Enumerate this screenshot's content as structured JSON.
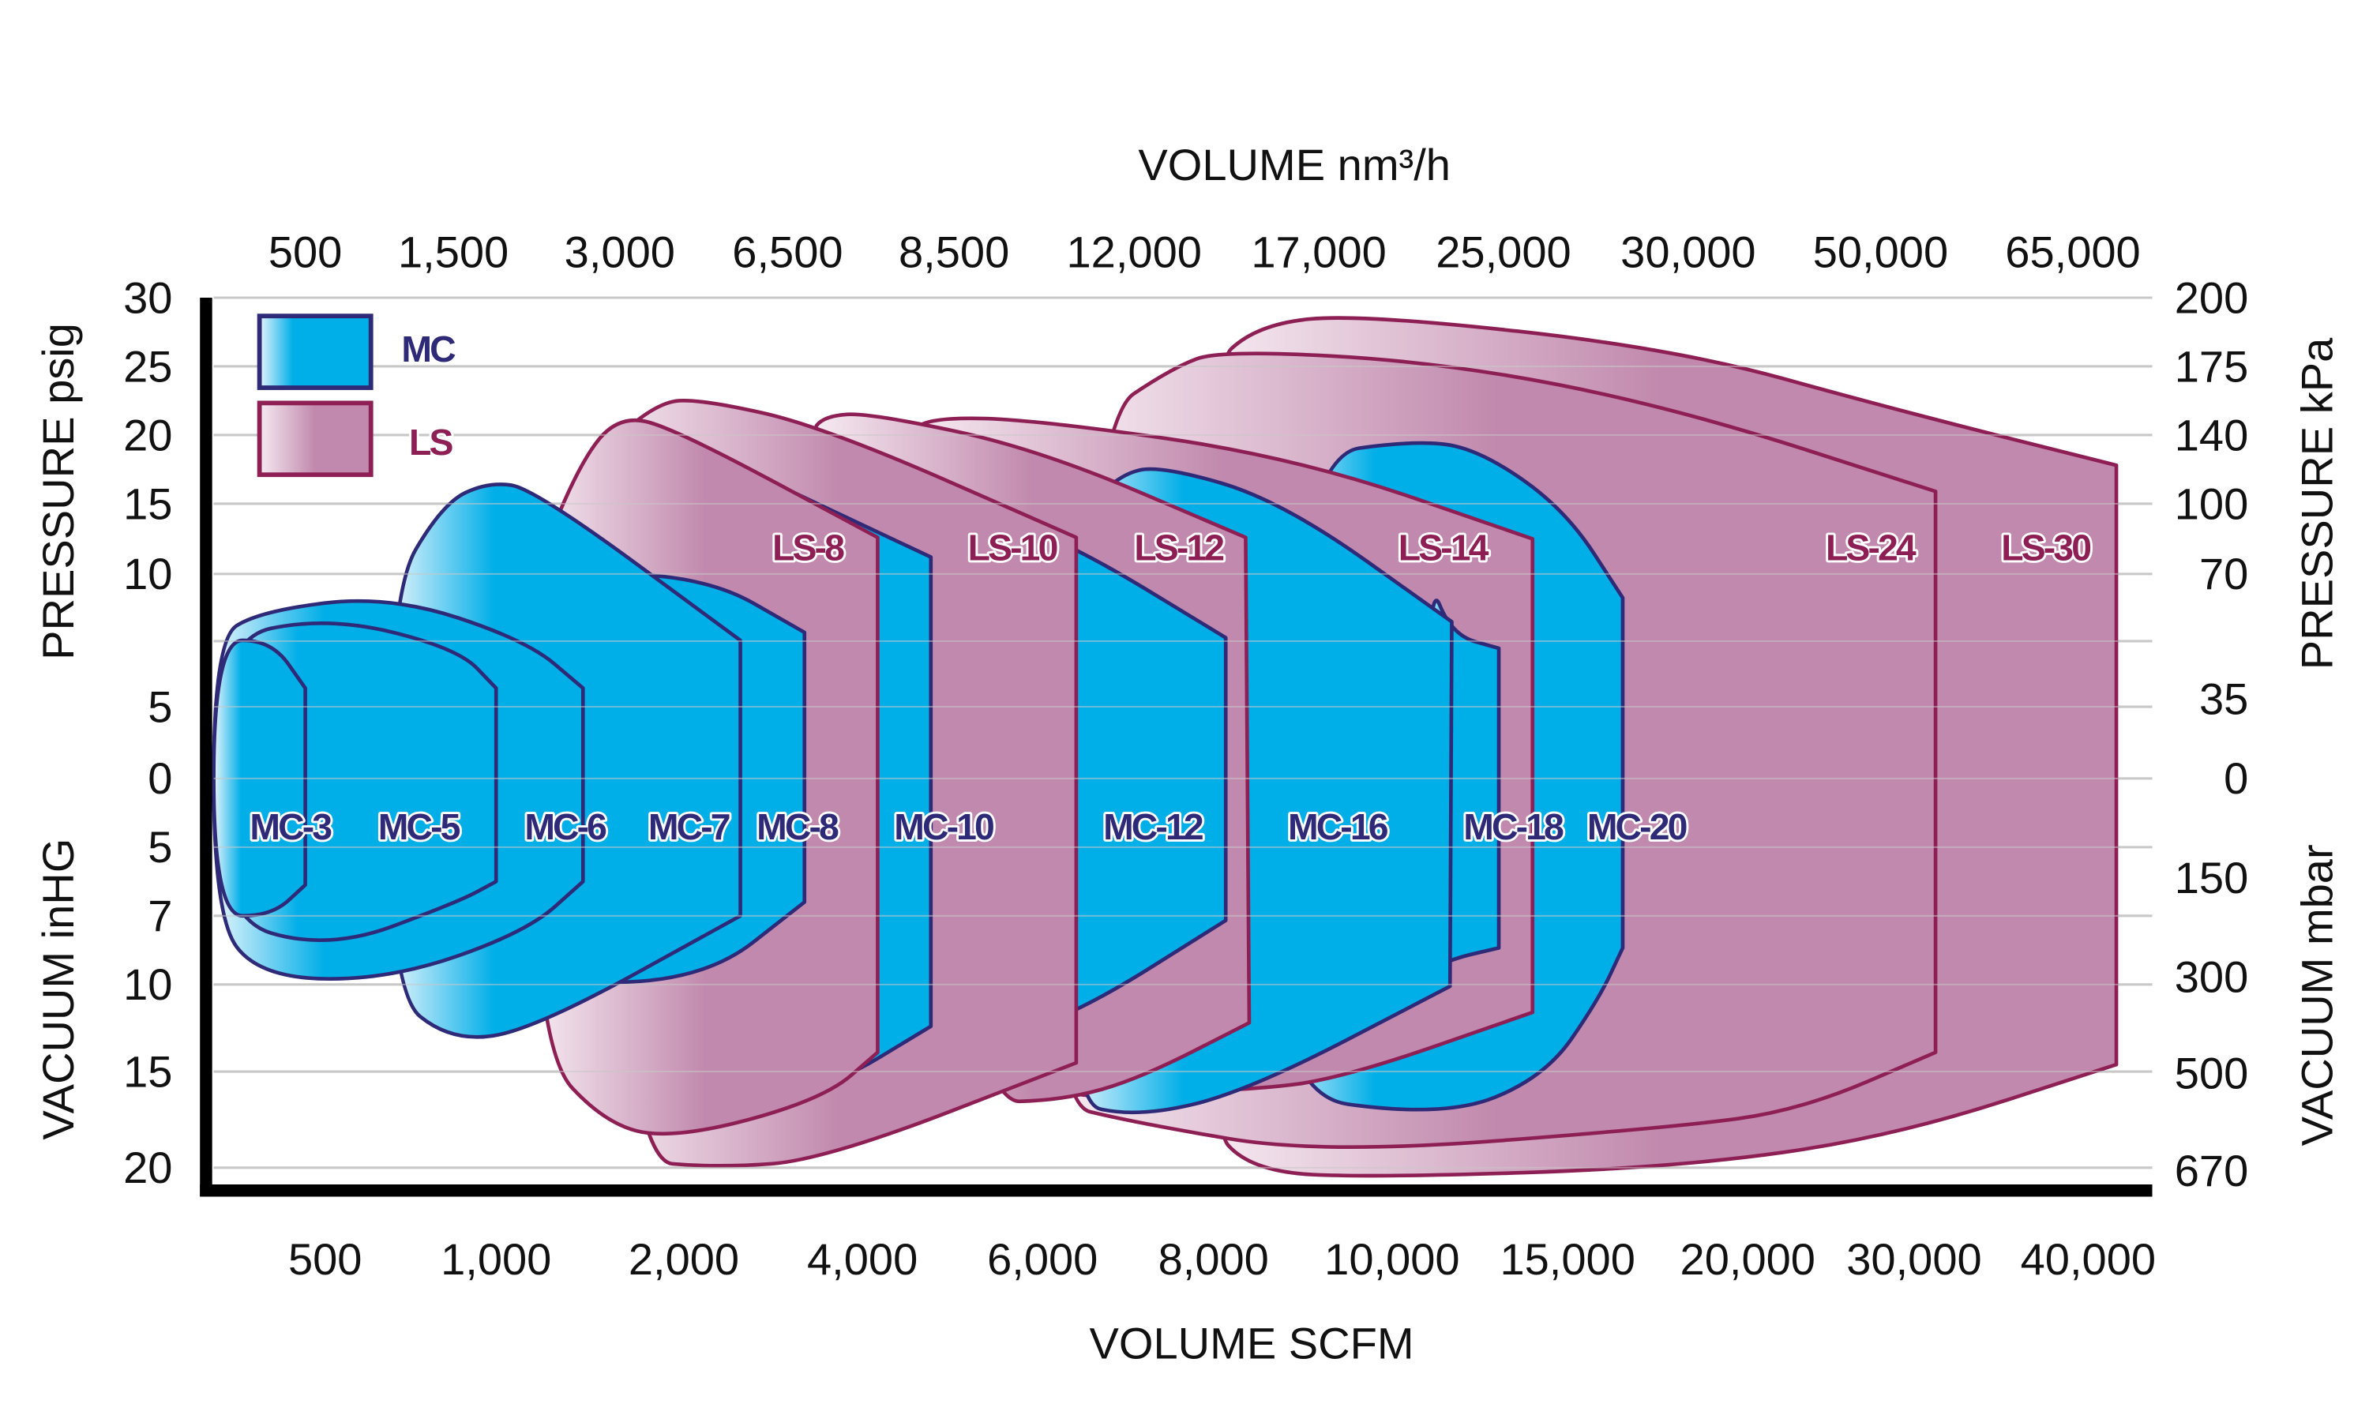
{
  "chart_data": {
    "type": "area",
    "top_axis_title": "VOLUME nm³/h",
    "bottom_axis_title": "VOLUME SCFM",
    "left_axis_title_upper": "PRESSURE psig",
    "left_axis_title_lower": "VACUUM inHG",
    "right_axis_title_upper": "PRESSURE kPa",
    "right_axis_title_lower": "VACUUM mbar",
    "x_ticks_scfm": [
      "500",
      "1,000",
      "2,000",
      "4,000",
      "6,000",
      "8,000",
      "10,000",
      "15,000",
      "20,000",
      "30,000",
      "40,000"
    ],
    "x_ticks_nm3h": [
      "500",
      "1,500",
      "3,000",
      "6,500",
      "8,500",
      "12,000",
      "17,000",
      "25,000",
      "30,000",
      "50,000",
      "65,000"
    ],
    "left_ticks_pressure_psig": [
      "30",
      "25",
      "20",
      "15",
      "10",
      "5",
      "0"
    ],
    "left_ticks_vacuum_inhg": [
      "5",
      "7",
      "10",
      "15",
      "20"
    ],
    "right_ticks_pressure_kpa": [
      "200",
      "175",
      "140",
      "100",
      "70",
      "35",
      "0"
    ],
    "right_ticks_vacuum_mbar": [
      "150",
      "300",
      "500",
      "670"
    ],
    "grid": true,
    "legend": {
      "placement": "top-left",
      "entries": [
        {
          "name": "MC",
          "family": "MC"
        },
        {
          "name": "LS",
          "family": "LS"
        }
      ]
    },
    "colors": {
      "MC_fill": "#00aee8",
      "MC_fill_light": "#e6f5fc",
      "MC_stroke": "#2e2a78",
      "LS_fill": "#c189ad",
      "LS_fill_light": "#f6eaf1",
      "LS_stroke": "#8e1f55",
      "grid": "#c8c8c8",
      "axis": "#000000"
    },
    "series_note_units": {
      "x": "SCFM",
      "top": "psig",
      "bottom": "inHg"
    },
    "series": [
      {
        "name": "LS-30",
        "family": "LS",
        "top": [
          [
            7900,
            24.5
          ],
          [
            8500,
            28.1
          ],
          [
            9670,
            28.8
          ],
          [
            17970,
            26.3
          ],
          [
            28710,
            21.9
          ],
          [
            41760,
            17.8
          ]
        ],
        "bottom": [
          [
            7900,
            17.5
          ],
          [
            8430,
            20.2
          ],
          [
            9790,
            20.5
          ],
          [
            17970,
            20
          ],
          [
            28710,
            18.4
          ],
          [
            41760,
            14.6
          ]
        ]
      },
      {
        "name": "LS-24",
        "family": "LS",
        "top": [
          [
            6610,
            21.1
          ],
          [
            7520,
            24.9
          ],
          [
            8085,
            26.2
          ],
          [
            11480,
            25.3
          ],
          [
            17970,
            22
          ],
          [
            31230,
            15.9
          ]
        ],
        "bottom": [
          [
            6000,
            16.5
          ],
          [
            7120,
            17.7
          ],
          [
            9210,
            19.3
          ],
          [
            17970,
            17.9
          ],
          [
            23210,
            17
          ],
          [
            31230,
            13.9
          ]
        ]
      },
      {
        "name": "MC-20",
        "family": "MC",
        "top": [
          [
            8910,
            18.4
          ],
          [
            10910,
            19.7
          ],
          [
            12650,
            18.7
          ],
          [
            14960,
            14.5
          ],
          [
            16530,
            9.1
          ]
        ],
        "bottom": [
          [
            8430,
            16
          ],
          [
            11480,
            17.4
          ],
          [
            14350,
            15.3
          ],
          [
            15850,
            10.9
          ],
          [
            16530,
            8.4
          ]
        ]
      },
      {
        "name": "LS-14",
        "family": "LS",
        "top": [
          [
            4500,
            20
          ],
          [
            4760,
            21.3
          ],
          [
            5950,
            21.1
          ],
          [
            8910,
            18.4
          ],
          [
            14000,
            12.5
          ]
        ],
        "bottom": [
          [
            5000,
            16.5
          ],
          [
            8400,
            16
          ],
          [
            9480,
            15.3
          ],
          [
            14000,
            11.6
          ]
        ]
      },
      {
        "name": "MC-18",
        "family": "MC",
        "top": [
          [
            11000,
            10
          ],
          [
            11700,
            7.7
          ],
          [
            13040,
            7.2
          ]
        ],
        "bottom": [
          [
            11000,
            9.5
          ],
          [
            11650,
            8.9
          ],
          [
            13040,
            8.4
          ]
        ]
      },
      {
        "name": "MC-16",
        "family": "MC",
        "top": [
          [
            6430,
            14
          ],
          [
            6890,
            17.1
          ],
          [
            7380,
            17.8
          ],
          [
            8770,
            15.2
          ],
          [
            11700,
            8.2
          ]
        ],
        "bottom": [
          [
            6230,
            16.5
          ],
          [
            7120,
            17.4
          ],
          [
            8400,
            16
          ],
          [
            11650,
            10.1
          ]
        ]
      },
      {
        "name": "LS-12",
        "family": "LS",
        "top": [
          [
            3400,
            20
          ],
          [
            3573,
            21.4
          ],
          [
            4084,
            21.6
          ],
          [
            5950,
            19
          ],
          [
            8360,
            12.6
          ]
        ],
        "bottom": [
          [
            5266,
            16.6
          ],
          [
            6230,
            16.5
          ],
          [
            7120,
            15.4
          ],
          [
            8400,
            12.2
          ]
        ]
      },
      {
        "name": "MC-12",
        "family": "MC",
        "top": [
          [
            5500,
            14
          ],
          [
            6430,
            11.8
          ],
          [
            8137,
            7.6
          ]
        ],
        "bottom": [
          [
            5500,
            13
          ],
          [
            6430,
            11.6
          ],
          [
            8137,
            7.2
          ]
        ]
      },
      {
        "name": "LS-10",
        "family": "LS",
        "top": [
          [
            1500,
            18
          ],
          [
            1854,
            22.4
          ],
          [
            2205,
            22.6
          ],
          [
            3573,
            20.6
          ],
          [
            6394,
            12.6
          ]
        ],
        "bottom": [
          [
            1700,
            19.6
          ],
          [
            2376,
            20
          ],
          [
            3573,
            19.6
          ],
          [
            6394,
            14.5
          ]
        ]
      },
      {
        "name": "MC-10",
        "family": "MC",
        "top": [
          [
            1447,
            15
          ],
          [
            1935,
            20
          ],
          [
            4760,
            11.2
          ]
        ],
        "bottom": [
          [
            2000,
            17
          ],
          [
            3573,
            16
          ],
          [
            4760,
            12.4
          ]
        ]
      },
      {
        "name": "LS-8",
        "family": "LS",
        "top": [
          [
            1203,
            10
          ],
          [
            1447,
            18
          ],
          [
            1650,
            21.4
          ],
          [
            1935,
            20.6
          ],
          [
            4169,
            12.6
          ]
        ],
        "bottom": [
          [
            1203,
            13.6
          ],
          [
            1610,
            18
          ],
          [
            2034,
            18.4
          ],
          [
            3573,
            16.4
          ],
          [
            4169,
            13.9
          ]
        ]
      },
      {
        "name": "MC-8",
        "family": "MC",
        "top": [
          [
            1163,
            10
          ],
          [
            2205,
            10
          ],
          [
            3351,
            7.8
          ]
        ],
        "bottom": [
          [
            1163,
            9.9
          ],
          [
            2205,
            9.9
          ],
          [
            3351,
            6.6
          ]
        ]
      },
      {
        "name": "MC-7",
        "family": "MC",
        "top": [
          [
            687,
            9.2
          ],
          [
            843,
            15
          ],
          [
            977,
            16.6
          ],
          [
            1203,
            16.1
          ],
          [
            2633,
            7.5
          ]
        ],
        "bottom": [
          [
            687,
            10.4
          ],
          [
            870,
            13.3
          ],
          [
            1200,
            12.6
          ],
          [
            2633,
            7
          ]
        ]
      },
      {
        "name": "MC-6",
        "family": "MC",
        "top": [
          [
            0,
            7.5
          ],
          [
            205,
            8.6
          ],
          [
            687,
            9.2
          ],
          [
            1163,
            7.5
          ],
          [
            1463,
            5.7
          ]
        ],
        "bottom": [
          [
            0,
            7
          ],
          [
            205,
            9.7
          ],
          [
            687,
            9.8
          ],
          [
            1163,
            7.7
          ],
          [
            1463,
            6.0
          ]
        ]
      },
      {
        "name": "MC-5",
        "family": "MC",
        "top": [
          [
            0,
            7.5
          ],
          [
            509,
            8.4
          ],
          [
            888,
            7.2
          ],
          [
            1000,
            5.7
          ]
        ],
        "bottom": [
          [
            0,
            7
          ],
          [
            509,
            8.5
          ],
          [
            888,
            6.6
          ],
          [
            1000,
            6.0
          ]
        ]
      },
      {
        "name": "MC-3",
        "family": "MC",
        "top": [
          [
            0,
            7.5
          ],
          [
            260,
            7.5
          ],
          [
            411,
            5.7
          ]
        ],
        "bottom": [
          [
            0,
            7
          ],
          [
            260,
            7
          ],
          [
            411,
            6.1
          ]
        ]
      }
    ]
  }
}
